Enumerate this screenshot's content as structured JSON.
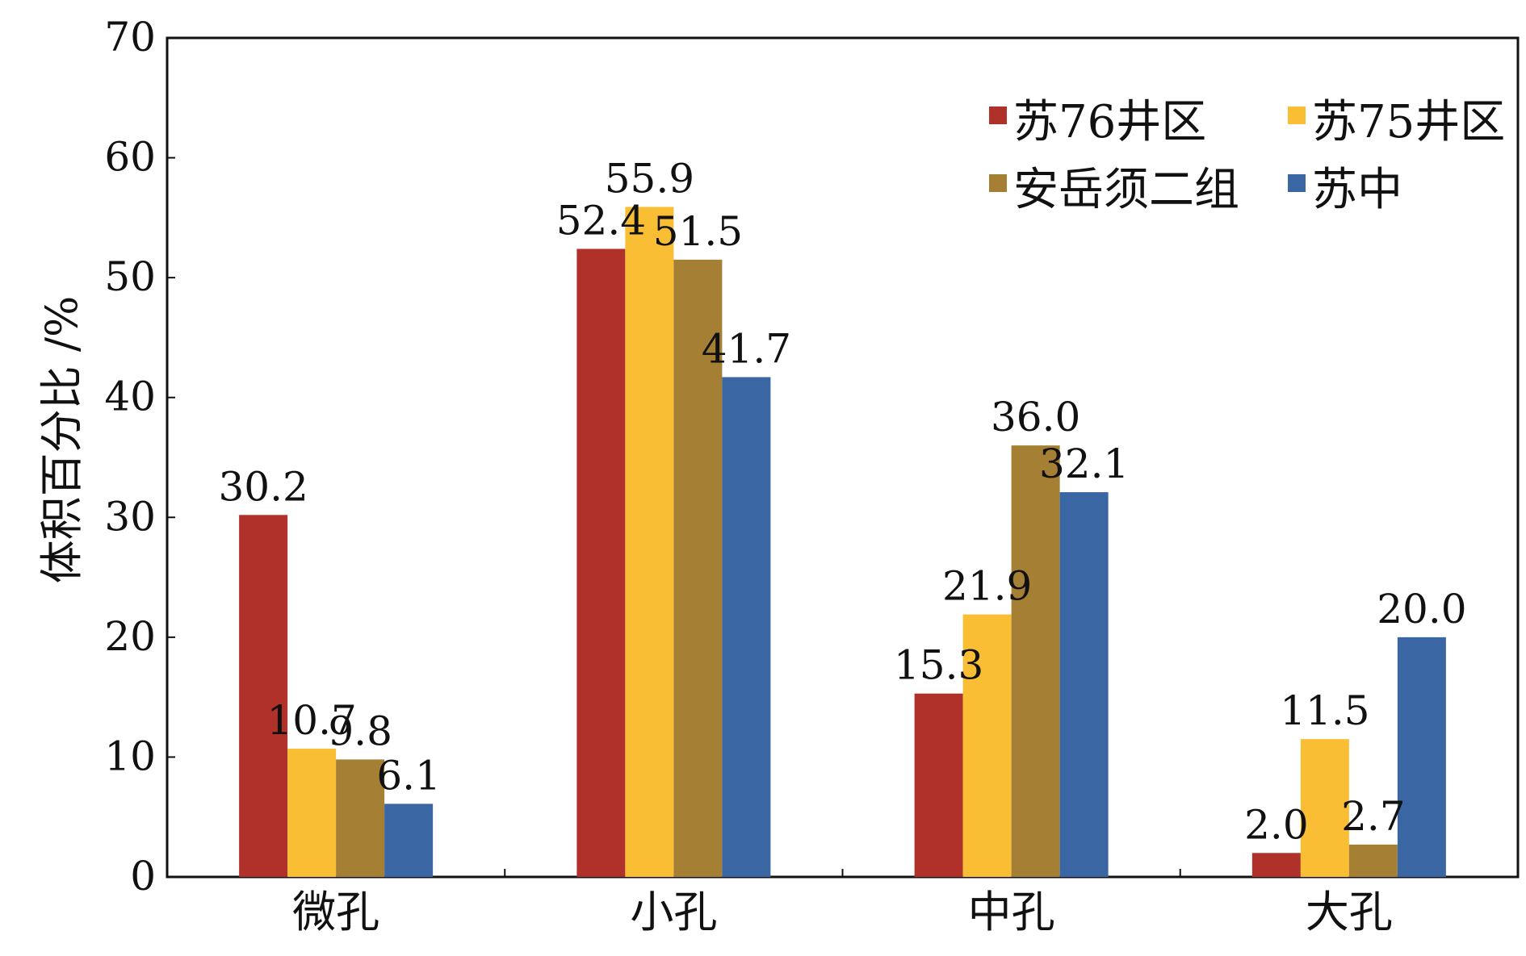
{
  "chart_data": {
    "type": "bar",
    "ylabel": "体积百分比 /%",
    "xlabel": "",
    "title": "",
    "ylim": [
      0,
      70
    ],
    "yticks": [
      0,
      10,
      20,
      30,
      40,
      50,
      60,
      70
    ],
    "grid": false,
    "legend_position": "top-right",
    "categories": [
      "微孔",
      "小孔",
      "中孔",
      "大孔"
    ],
    "series": [
      {
        "name": "苏76井区",
        "color": "#b0302a",
        "values": [
          30.2,
          52.4,
          15.3,
          2.0
        ]
      },
      {
        "name": "苏75井区",
        "color": "#f9be34",
        "values": [
          10.7,
          55.9,
          21.9,
          11.5
        ]
      },
      {
        "name": "安岳须二组",
        "color": "#a47f34",
        "values": [
          9.8,
          51.5,
          36.0,
          2.7
        ]
      },
      {
        "name": "苏中",
        "color": "#3a67a4",
        "values": [
          6.1,
          41.7,
          32.1,
          20.0
        ]
      }
    ],
    "data_labels": [
      [
        "30.2",
        "52.4",
        "15.3",
        "2.0"
      ],
      [
        "10.7",
        "55.9",
        "21.9",
        "11.5"
      ],
      [
        "9.8",
        "51.5",
        "36.0",
        "2.7"
      ],
      [
        "6.1",
        "41.7",
        "32.1",
        "20.0"
      ]
    ]
  }
}
